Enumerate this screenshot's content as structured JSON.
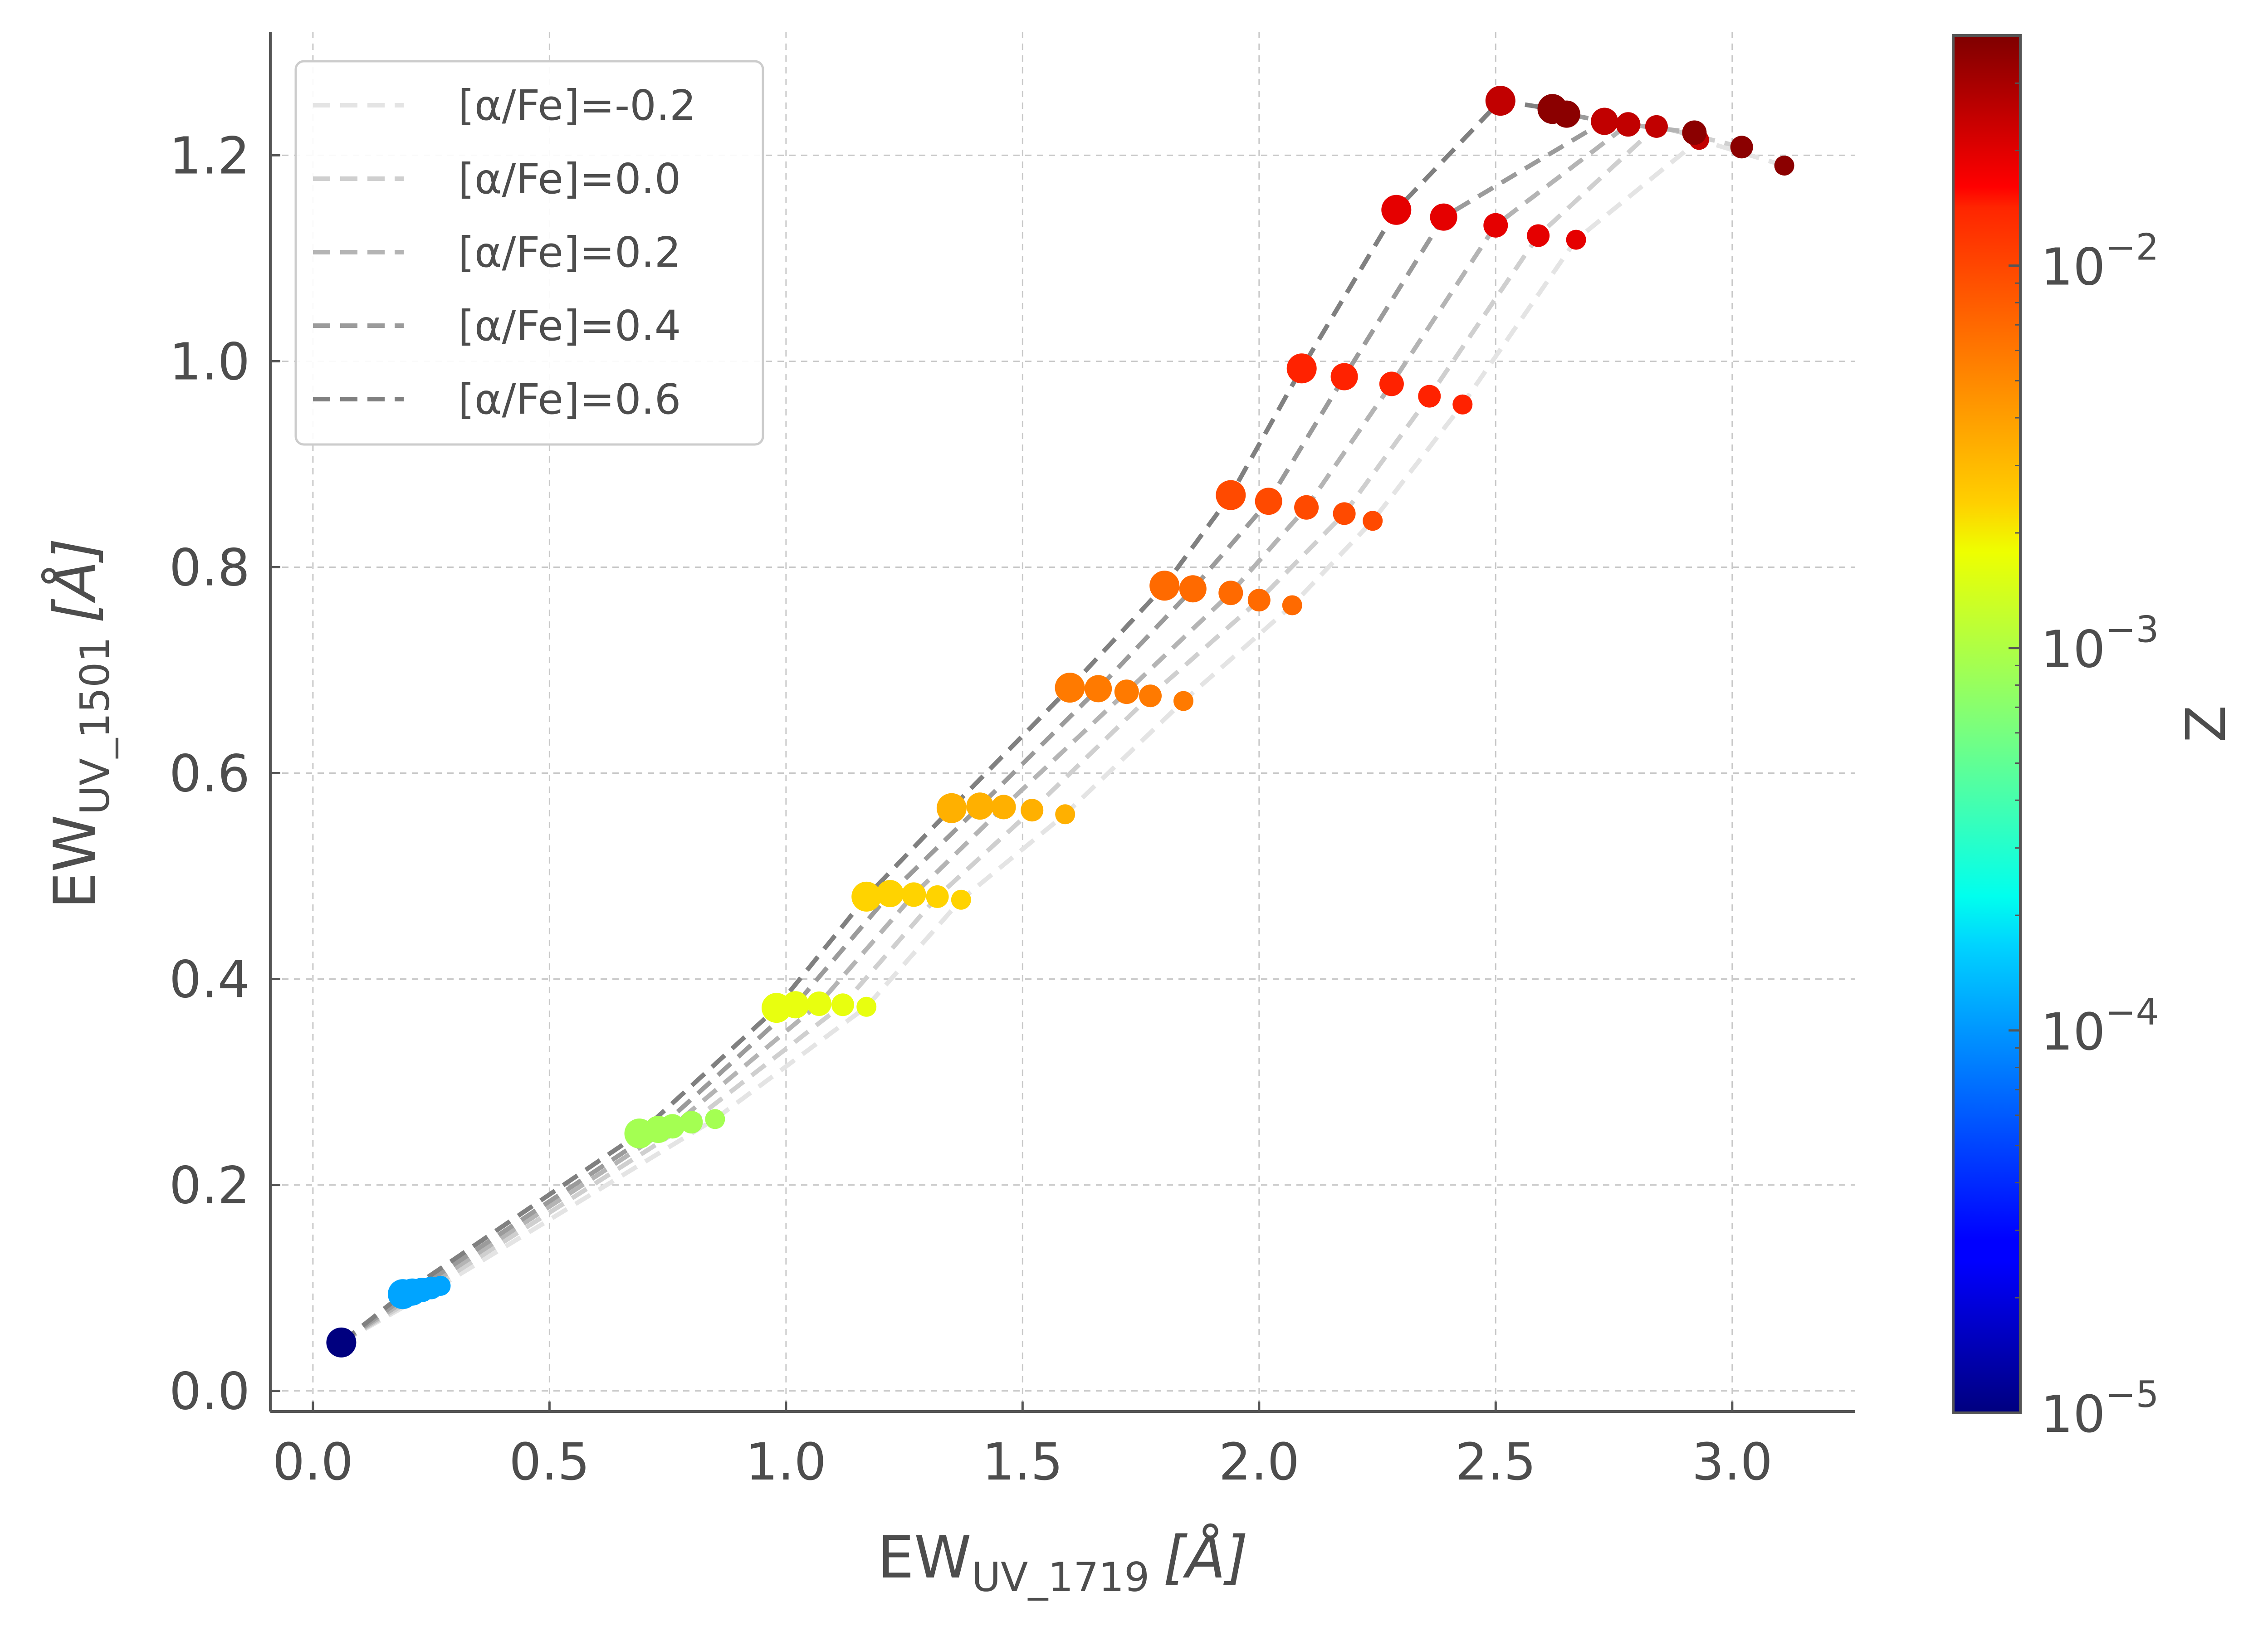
{
  "chart_data": {
    "type": "scatter",
    "xlabel": {
      "base": "EW",
      "sub": "UV_1719",
      "unit": "[Å]"
    },
    "ylabel": {
      "base": "EW",
      "sub": "UV_1501",
      "unit": "[Å]"
    },
    "xlim": [
      -0.09,
      3.26
    ],
    "ylim": [
      -0.02,
      1.32
    ],
    "xticks": [
      0.0,
      0.5,
      1.0,
      1.5,
      2.0,
      2.5,
      3.0
    ],
    "xtick_labels": [
      "0.0",
      "0.5",
      "1.0",
      "1.5",
      "2.0",
      "2.5",
      "3.0"
    ],
    "yticks": [
      0.0,
      0.2,
      0.4,
      0.6,
      0.8,
      1.0,
      1.2
    ],
    "ytick_labels": [
      "0.0",
      "0.2",
      "0.4",
      "0.6",
      "0.8",
      "1.0",
      "1.2"
    ],
    "grid": true,
    "legend_position": "top-left",
    "colormap": "jet",
    "colorbar": {
      "label": "Z",
      "scale": "log",
      "range": [
        1e-05,
        0.04
      ],
      "ticks": [
        {
          "value": 1e-05,
          "base": "10",
          "exp": "−5"
        },
        {
          "value": 0.0001,
          "base": "10",
          "exp": "−4"
        },
        {
          "value": 0.001,
          "base": "10",
          "exp": "−3"
        },
        {
          "value": 0.01,
          "base": "10",
          "exp": "−2"
        }
      ]
    },
    "series": [
      {
        "name": "[α/Fe]=-0.2",
        "line_color": "#e4e4e4",
        "x": [
          0.06,
          0.27,
          0.85,
          1.17,
          1.37,
          1.59,
          1.84,
          2.07,
          2.24,
          2.43,
          2.67,
          2.93,
          3.11
        ],
        "y": [
          0.047,
          0.102,
          0.264,
          0.373,
          0.477,
          0.56,
          0.67,
          0.763,
          0.845,
          0.958,
          1.118,
          1.215,
          1.19
        ]
      },
      {
        "name": "[α/Fe]=0.0",
        "line_color": "#cfcfcf",
        "x": [
          0.06,
          0.25,
          0.8,
          1.12,
          1.32,
          1.52,
          1.77,
          2.0,
          2.18,
          2.36,
          2.59,
          2.84,
          3.02
        ],
        "y": [
          0.047,
          0.1,
          0.261,
          0.375,
          0.48,
          0.564,
          0.675,
          0.768,
          0.852,
          0.966,
          1.122,
          1.228,
          1.208
        ]
      },
      {
        "name": "[α/Fe]=0.2",
        "line_color": "#b4b4b4",
        "x": [
          0.06,
          0.23,
          0.76,
          1.07,
          1.27,
          1.46,
          1.72,
          1.94,
          2.1,
          2.28,
          2.5,
          2.78,
          2.92
        ],
        "y": [
          0.047,
          0.098,
          0.257,
          0.376,
          0.482,
          0.567,
          0.679,
          0.775,
          0.858,
          0.978,
          1.132,
          1.23,
          1.222
        ]
      },
      {
        "name": "[α/Fe]=0.4",
        "line_color": "#9b9b9b",
        "x": [
          0.06,
          0.21,
          0.73,
          1.02,
          1.22,
          1.41,
          1.66,
          1.86,
          2.02,
          2.18,
          2.39,
          2.73,
          2.65
        ],
        "y": [
          0.047,
          0.096,
          0.254,
          0.375,
          0.483,
          0.568,
          0.682,
          0.779,
          0.864,
          0.985,
          1.14,
          1.233,
          1.24
        ]
      },
      {
        "name": "[α/Fe]=0.6",
        "line_color": "#808080",
        "x": [
          0.06,
          0.19,
          0.69,
          0.98,
          1.17,
          1.35,
          1.6,
          1.8,
          1.94,
          2.09,
          2.29,
          2.51,
          2.62
        ],
        "y": [
          0.047,
          0.094,
          0.25,
          0.372,
          0.48,
          0.566,
          0.683,
          0.782,
          0.87,
          0.993,
          1.147,
          1.253,
          1.245
        ]
      }
    ],
    "metallicity_z": [
      1e-05,
      0.00013,
      0.0012,
      0.0025,
      0.0035,
      0.0045,
      0.0065,
      0.0085,
      0.0115,
      0.0165,
      0.0235,
      0.03,
      0.034
    ],
    "metallicity_colors": [
      "#00007f",
      "#00a4ff",
      "#a4ff52",
      "#e8ff0f",
      "#ffd300",
      "#ffb000",
      "#ff7a00",
      "#ff6a00",
      "#ff4a00",
      "#ff2200",
      "#e50000",
      "#c10000",
      "#8b0000"
    ]
  }
}
